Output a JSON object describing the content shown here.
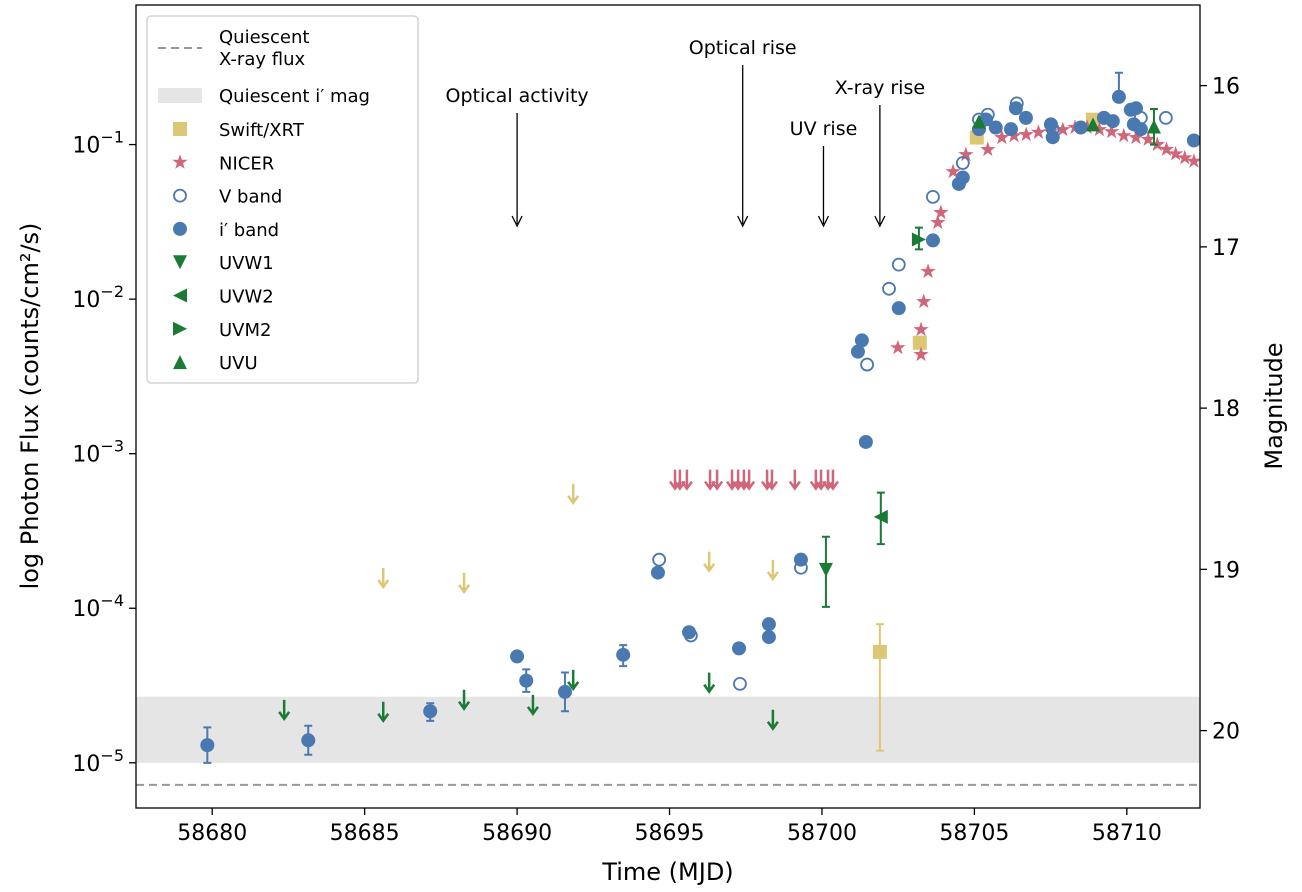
{
  "chart_data": {
    "type": "scatter",
    "x_label": "Time (MJD)",
    "y_label": "log Photon Flux (counts/cm²/s)",
    "y2_label": "Magnitude",
    "xlim": [
      58677.5,
      58712.4
    ],
    "xticks": [
      58680,
      58685,
      58690,
      58695,
      58700,
      58705,
      58710
    ],
    "ylim": [
      5.1e-06,
      0.8
    ],
    "log_y": true,
    "yticks": [
      {
        "value": 1e-05,
        "label": "10−5"
      },
      {
        "value": 0.0001,
        "label": "10−4"
      },
      {
        "value": 0.001,
        "label": "10−3"
      },
      {
        "value": 0.01,
        "label": "10−2"
      },
      {
        "value": 0.1,
        "label": "10−1"
      }
    ],
    "y2lim": [
      20.48,
      15.5
    ],
    "y2ticks": [
      16,
      17,
      18,
      19,
      20
    ],
    "legend": "upper left",
    "reference_line": {
      "name_lines": [
        "Quiescent",
        "X-ray flux"
      ],
      "value": 7.2e-06,
      "color": "#999999"
    },
    "reference_band": {
      "name": "Quiescent i′ mag",
      "range": [
        19.79,
        20.2
      ],
      "axis": "y2",
      "color": "#e5e5e5"
    },
    "annotations": [
      {
        "text": "Optical activity",
        "x": 58690.0
      },
      {
        "text": "Optical rise",
        "x": 58697.4
      },
      {
        "text": "UV rise",
        "x": 58700.05
      },
      {
        "text": "X-ray rise",
        "x": 58701.9
      }
    ],
    "series": [
      {
        "name": "Swift/XRT",
        "color": "#dcc874",
        "marker": "square",
        "x": [
          58701.9,
          58703.21,
          58705.08,
          58708.89
        ],
        "values": [
          5.22e-05,
          0.00522,
          0.111,
          0.145
        ],
        "errors": [
          [
            1.2e-05,
            7.9e-05
          ],
          null,
          null,
          null
        ],
        "limits": {
          "x": [
            58685.61,
            58688.26,
            58691.84,
            58696.3,
            58698.39
          ],
          "values": [
            0.000157,
            0.000146,
            0.00055,
            0.0002,
            0.000177
          ]
        }
      },
      {
        "name": "NICER",
        "color": "#d0667a",
        "marker": "star",
        "x": [
          58702.49,
          58703.25,
          58703.25,
          58703.34,
          58703.48,
          58703.8,
          58703.9,
          58704.3,
          58704.72,
          58705.44,
          58705.9,
          58706.3,
          58706.7,
          58707.1,
          58707.5,
          58707.9,
          58708.3,
          58708.7,
          58709.1,
          58709.5,
          58709.9,
          58710.3,
          58710.7,
          58711.0,
          58711.3,
          58711.6,
          58711.9,
          58712.2
        ],
        "values": [
          0.00485,
          0.00438,
          0.00635,
          0.00964,
          0.0151,
          0.0313,
          0.0363,
          0.0668,
          0.0861,
          0.0928,
          0.111,
          0.114,
          0.116,
          0.12,
          0.121,
          0.125,
          0.129,
          0.129,
          0.125,
          0.121,
          0.114,
          0.111,
          0.108,
          0.1,
          0.093,
          0.087,
          0.082,
          0.078
        ],
        "limits": {
          "x": [
            58695.18,
            58695.34,
            58695.57,
            58696.33,
            58696.56,
            58697.05,
            58697.25,
            58697.44,
            58697.61,
            58698.2,
            58698.36,
            58699.11,
            58699.8,
            58699.97,
            58700.2,
            58700.36
          ],
          "values": [
            0.00068,
            0.00068,
            0.00068,
            0.00068,
            0.00068,
            0.00068,
            0.00068,
            0.00068,
            0.00068,
            0.00068,
            0.00068,
            0.00068,
            0.00068,
            0.00068,
            0.00068,
            0.00068
          ]
        }
      },
      {
        "name": "V band",
        "color": "#4a78b0",
        "marker": "open-circle",
        "axis": "y2",
        "x": [
          58694.66,
          58695.7,
          58697.31,
          58699.31,
          58701.48,
          58702.2,
          58702.52,
          58703.64,
          58704.62,
          58705.15,
          58705.44,
          58706.39,
          58707.57,
          58709.25,
          58710.46,
          58711.28
        ],
        "values": [
          18.94,
          19.41,
          19.71,
          18.99,
          17.73,
          17.26,
          17.11,
          16.69,
          16.48,
          16.21,
          16.18,
          16.11,
          16.27,
          16.2,
          16.2,
          16.2
        ]
      },
      {
        "name": "i′ band",
        "color": "#4a78b0",
        "marker": "circle",
        "axis": "y2",
        "x": [
          58679.84,
          58683.15,
          58687.15,
          58690.0,
          58690.3,
          58691.57,
          58693.48,
          58694.62,
          58695.64,
          58697.28,
          58698.26,
          58698.26,
          58699.31,
          58701.44,
          58701.18,
          58701.31,
          58702.52,
          58703.64,
          58704.49,
          58704.62,
          58705.15,
          58705.38,
          58705.7,
          58706.2,
          58706.36,
          58706.69,
          58707.51,
          58707.57,
          58708.49,
          58709.25,
          58709.54,
          58710.13,
          58710.23,
          58710.46,
          58709.74,
          58710.3,
          58712.2
        ],
        "values": [
          20.09,
          20.06,
          19.88,
          19.54,
          19.69,
          19.76,
          19.53,
          19.02,
          19.39,
          19.49,
          19.34,
          19.42,
          18.94,
          18.21,
          17.65,
          17.58,
          17.38,
          16.96,
          16.61,
          16.57,
          16.27,
          16.21,
          16.26,
          16.27,
          16.14,
          16.2,
          16.24,
          16.32,
          16.26,
          16.2,
          16.22,
          16.15,
          16.24,
          16.27,
          16.07,
          16.14,
          16.34
        ],
        "errors": [
          [
            19.98,
            20.2
          ],
          [
            19.97,
            20.15
          ],
          [
            19.83,
            19.94
          ],
          null,
          [
            19.62,
            19.76
          ],
          [
            19.64,
            19.88
          ],
          [
            19.47,
            19.6
          ],
          null,
          null,
          null,
          null,
          null,
          null,
          null,
          null,
          null,
          null,
          null,
          null,
          null,
          null,
          null,
          null,
          null,
          null,
          null,
          null,
          null,
          null,
          null,
          null,
          null,
          null,
          null,
          [
            15.92,
            16.07
          ],
          null,
          null
        ]
      },
      {
        "name": "UVW1",
        "color": "#1b7a35",
        "marker": "triangle-down",
        "x": [
          58700.13
        ],
        "values": [
          0.000177
        ],
        "errors": [
          [
            0.000102,
            0.00029
          ]
        ],
        "limits": {
          "x": [
            58682.36,
            58685.61,
            58688.26,
            58690.52,
            58691.84,
            58696.3,
            58698.39
          ],
          "values": [
            2.2e-05,
            2.14e-05,
            2.56e-05,
            2.37e-05,
            3.44e-05,
            3.3e-05,
            1.9e-05
          ]
        }
      },
      {
        "name": "UVW2",
        "color": "#1b7a35",
        "marker": "triangle-left",
        "x": [
          58701.93
        ],
        "values": [
          0.00039
        ],
        "errors": [
          [
            0.00026,
            0.00056
          ]
        ]
      },
      {
        "name": "UVM2",
        "color": "#1b7a35",
        "marker": "triangle-right",
        "x": [
          58703.18
        ],
        "values": [
          0.0243
        ],
        "errors": [
          [
            0.021,
            0.029
          ]
        ]
      },
      {
        "name": "UVU",
        "color": "#1b7a35",
        "marker": "triangle-up",
        "x": [
          58705.15,
          58708.89,
          58710.89
        ],
        "values": [
          0.141,
          0.135,
          0.131
        ],
        "errors": [
          null,
          null,
          [
            0.1,
            0.17
          ]
        ]
      }
    ]
  }
}
